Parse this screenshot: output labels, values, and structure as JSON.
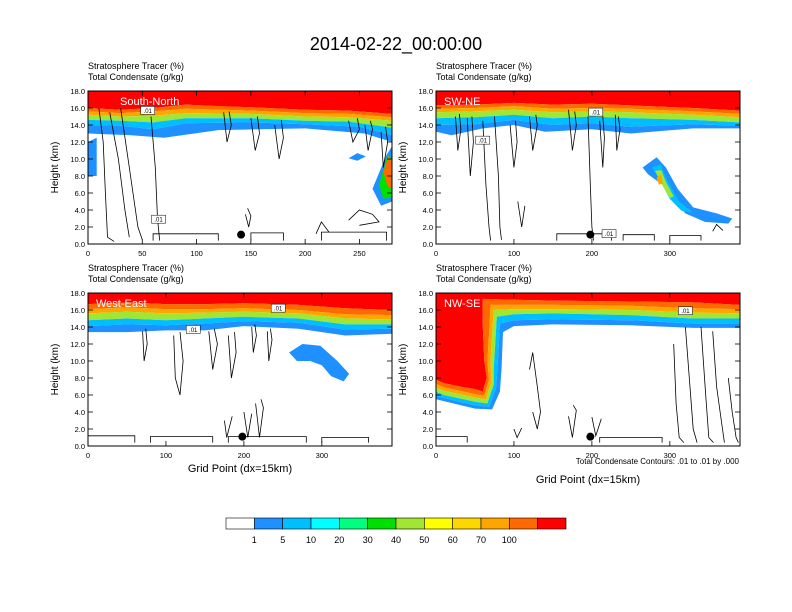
{
  "title": "2014-02-22_00:00:00",
  "colorbar": {
    "labels": [
      "1",
      "5",
      "10",
      "20",
      "30",
      "40",
      "50",
      "60",
      "70",
      "100"
    ],
    "colors": [
      "#ffffff",
      "#1e90ff",
      "#00bfff",
      "#00ffff",
      "#00ff7f",
      "#00e000",
      "#a0e632",
      "#ffff00",
      "#ffd700",
      "#ffa500",
      "#ff6a00",
      "#ff0000"
    ]
  },
  "contour_note": "Total Condensate Contours: .01 to .01 by .000",
  "chart_data": [
    {
      "type": "heatmap",
      "panel": "top-left",
      "title_lines": [
        "Stratosphere Tracer   (%)",
        "Total Condensate   (g/kg)"
      ],
      "label": "South-North",
      "ylabel": "Height (km)",
      "xlabel": "",
      "xlim": [
        0,
        280
      ],
      "ylim": [
        0,
        18
      ],
      "xticks": [
        0,
        50,
        100,
        150,
        200,
        250
      ],
      "yticks": [
        "0.0",
        "2.0",
        "4.0",
        "6.0",
        "8.0",
        "10.0",
        "12.0",
        "14.0",
        "16.0",
        "18.0"
      ],
      "contour_labels": [
        ".01",
        ".01"
      ],
      "marker_x": 141,
      "marker_y": 1.1
    },
    {
      "type": "heatmap",
      "panel": "top-right",
      "title_lines": [
        "Stratosphere Tracer   (%)",
        "Total Condensate   (g/kg)"
      ],
      "label": "SW-NE",
      "ylabel": "Height (km)",
      "xlabel": "",
      "xlim": [
        0,
        390
      ],
      "ylim": [
        0,
        18
      ],
      "xticks": [
        0,
        100,
        200,
        300
      ],
      "yticks": [
        "0.0",
        "2.0",
        "4.0",
        "6.0",
        "8.0",
        "10.0",
        "12.0",
        "14.0",
        "16.0",
        "18.0"
      ],
      "contour_labels": [
        ".01",
        ".01",
        ".01"
      ],
      "marker_x": 198,
      "marker_y": 1.1
    },
    {
      "type": "heatmap",
      "panel": "bottom-left",
      "title_lines": [
        "Stratosphere Tracer   (%)",
        "Total Condensate   (g/kg)"
      ],
      "label": "West-East",
      "ylabel": "Height (km)",
      "xlabel": "Grid Point (dx=15km)",
      "xlim": [
        0,
        390
      ],
      "ylim": [
        0,
        18
      ],
      "xticks": [
        0,
        100,
        200,
        300
      ],
      "yticks": [
        "0.0",
        "2.0",
        "4.0",
        "6.0",
        "8.0",
        "10.0",
        "12.0",
        "14.0",
        "16.0",
        "18.0"
      ],
      "contour_labels": [
        ".01",
        ".01"
      ],
      "marker_x": 198,
      "marker_y": 1.1
    },
    {
      "type": "heatmap",
      "panel": "bottom-right",
      "title_lines": [
        "Stratosphere Tracer   (%)",
        "Total Condensate   (g/kg)"
      ],
      "label": "NW-SE",
      "ylabel": "Height (km)",
      "xlabel": "Grid Point (dx=15km)",
      "xlim": [
        0,
        390
      ],
      "ylim": [
        0,
        18
      ],
      "xticks": [
        0,
        100,
        200,
        300
      ],
      "yticks": [
        "0.0",
        "2.0",
        "4.0",
        "6.0",
        "8.0",
        "10.0",
        "12.0",
        "14.0",
        "16.0",
        "18.0"
      ],
      "contour_labels": [
        ".01"
      ],
      "marker_x": 198,
      "marker_y": 1.1
    }
  ]
}
